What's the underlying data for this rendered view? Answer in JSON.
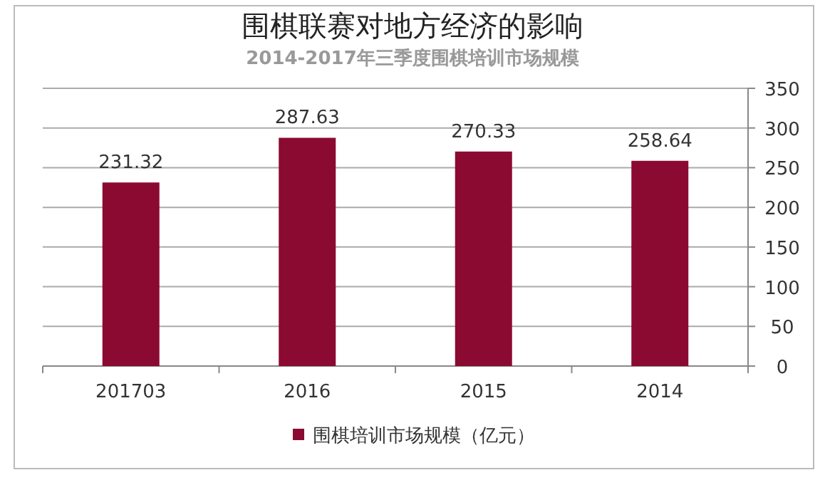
{
  "chart_data": {
    "type": "bar",
    "title": "围棋联赛对地方经济的影响",
    "subtitle": "2014-2017年三季度围棋培训市场规模",
    "categories": [
      "201703",
      "2016",
      "2015",
      "2014"
    ],
    "series": [
      {
        "name": "围棋培训市场规模（亿元）",
        "color": "#8b0a32",
        "values": [
          231.32,
          287.63,
          270.33,
          258.64
        ]
      }
    ],
    "ylim": [
      0,
      350
    ],
    "yticks": [
      0,
      50,
      100,
      150,
      200,
      250,
      300,
      350
    ],
    "grid": "y",
    "data_labels": true,
    "legend": "bottom"
  }
}
